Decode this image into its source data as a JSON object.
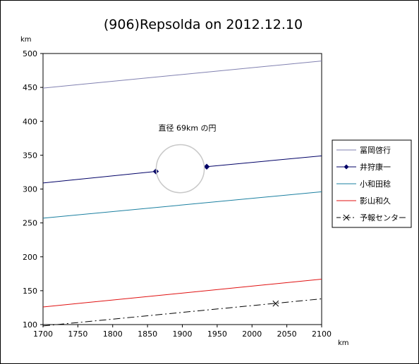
{
  "chart_data": {
    "type": "line",
    "title": "(906)Repsolda on 2012.12.10",
    "xlabel": "km",
    "ylabel": "km",
    "xlim": [
      1700,
      2100
    ],
    "ylim": [
      100,
      500
    ],
    "x_ticks": [
      1700,
      1750,
      1800,
      1850,
      1900,
      1950,
      2000,
      2050,
      2100
    ],
    "y_ticks": [
      100,
      150,
      200,
      250,
      300,
      350,
      400,
      450,
      500
    ],
    "grid": false,
    "legend_position": "right",
    "annotation": {
      "text": "直径 69km の円",
      "circle_center": [
        1897,
        330
      ],
      "circle_diameter_km": 69
    },
    "series": [
      {
        "name": "冨岡啓行",
        "color": "#8080b0",
        "style": "solid",
        "marker": "none",
        "segments": [
          [
            [
              1700,
              449
            ],
            [
              2100,
              489
            ]
          ]
        ]
      },
      {
        "name": "井狩康一",
        "color": "#000066",
        "style": "solid",
        "marker": "diamond",
        "segments": [
          [
            [
              1700,
              309
            ],
            [
              1862,
              326
            ]
          ],
          [
            [
              1935,
              333
            ],
            [
              2100,
              349
            ]
          ]
        ],
        "markers": [
          [
            1862,
            326
          ],
          [
            1935,
            333
          ]
        ]
      },
      {
        "name": "小和田稔",
        "color": "#1a7fa0",
        "style": "solid",
        "marker": "none",
        "segments": [
          [
            [
              1700,
              257
            ],
            [
              2100,
              296
            ]
          ]
        ]
      },
      {
        "name": "影山和久",
        "color": "#e01010",
        "style": "solid",
        "marker": "none",
        "segments": [
          [
            [
              1700,
              126
            ],
            [
              2100,
              167
            ]
          ]
        ]
      },
      {
        "name": "予報センター",
        "color": "#000000",
        "style": "dashdot",
        "marker": "x",
        "segments": [
          [
            [
              1700,
              98
            ],
            [
              2100,
              138
            ]
          ]
        ],
        "markers": [
          [
            2034,
            131
          ]
        ]
      }
    ]
  }
}
